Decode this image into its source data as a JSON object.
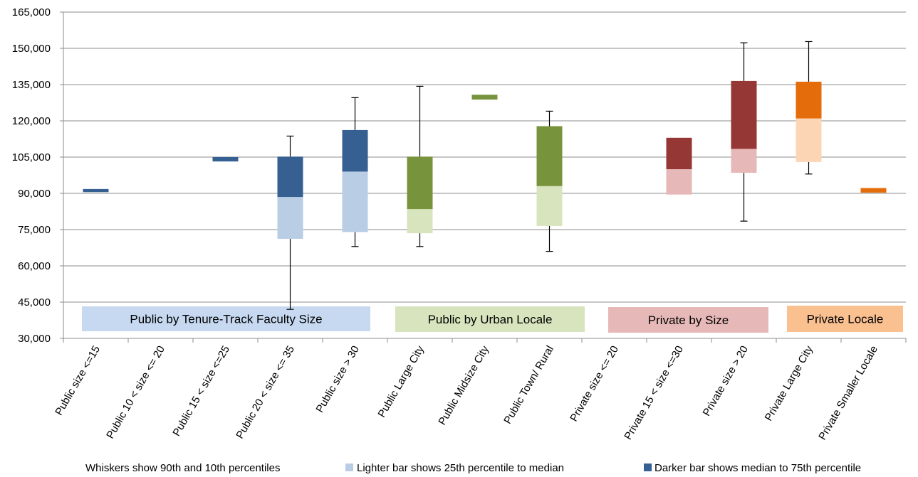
{
  "chart_data": {
    "type": "box",
    "title": "",
    "xlabel": "",
    "ylabel": "",
    "ylim": [
      30000,
      165000
    ],
    "yticks": [
      30000,
      45000,
      60000,
      75000,
      90000,
      105000,
      120000,
      135000,
      150000,
      165000
    ],
    "ytick_labels": [
      "30,000",
      "45,000",
      "60,000",
      "75,000",
      "90,000",
      "105,000",
      "120,000",
      "135,000",
      "150,000",
      "165,000"
    ],
    "grid": true,
    "categories": [
      "Public size <=15",
      "Public 10 < size <= 20",
      "Public 15 < size <=25",
      "Public 20 < size <= 35",
      "Public size > 30",
      "Public Large City",
      "Public Midsize City",
      "Public Town/ Rural",
      "Private size <= 20",
      "Private 15 < size <=30",
      "Private size > 20",
      "Private Large City",
      "Private Smaller Locale"
    ],
    "boxes": [
      {
        "p10": null,
        "q1": null,
        "median": 90500,
        "q3": 91800,
        "p90": null,
        "dark": "#376092",
        "light": "#b9cde5"
      },
      {
        "p10": null,
        "q1": null,
        "median": null,
        "q3": null,
        "p90": null,
        "dark": "#376092",
        "light": "#b9cde5"
      },
      {
        "p10": null,
        "q1": null,
        "median": 103200,
        "q3": 105000,
        "p90": null,
        "dark": "#376092",
        "light": "#b9cde5"
      },
      {
        "p10": 42000,
        "q1": 71200,
        "median": 88500,
        "q3": 105200,
        "p90": 113700,
        "dark": "#376092",
        "light": "#b9cde5"
      },
      {
        "p10": 68000,
        "q1": 74000,
        "median": 99000,
        "q3": 116200,
        "p90": 129600,
        "dark": "#376092",
        "light": "#b9cde5"
      },
      {
        "p10": 68000,
        "q1": 73500,
        "median": 83500,
        "q3": 105200,
        "p90": 134300,
        "dark": "#77933c",
        "light": "#d7e4bd"
      },
      {
        "p10": null,
        "q1": null,
        "median": 128800,
        "q3": 130800,
        "p90": null,
        "dark": "#77933c",
        "light": "#d7e4bd"
      },
      {
        "p10": 66000,
        "q1": 76500,
        "median": 93000,
        "q3": 117800,
        "p90": 124000,
        "dark": "#77933c",
        "light": "#d7e4bd"
      },
      {
        "p10": null,
        "q1": null,
        "median": null,
        "q3": null,
        "p90": null,
        "dark": "#953735",
        "light": "#e6b9b8"
      },
      {
        "p10": null,
        "q1": 89500,
        "median": 100000,
        "q3": 113000,
        "p90": null,
        "dark": "#953735",
        "light": "#e6b9b8"
      },
      {
        "p10": 78500,
        "q1": 98500,
        "median": 108400,
        "q3": 136500,
        "p90": 152300,
        "dark": "#953735",
        "light": "#e6b9b8"
      },
      {
        "p10": 98000,
        "q1": 103000,
        "median": 121000,
        "q3": 136200,
        "p90": 152800,
        "dark": "#e46c0a",
        "light": "#fcd5b5"
      },
      {
        "p10": null,
        "q1": null,
        "median": 90300,
        "q3": 92200,
        "p90": null,
        "dark": "#e46c0a",
        "light": "#fcd5b5"
      }
    ],
    "groups": [
      {
        "label": "Public by Tenure-Track Faculty Size",
        "color": "#c6d9f1",
        "start": 0,
        "end": 4
      },
      {
        "label": "Public by Urban Locale",
        "color": "#d7e4bd",
        "start": 5,
        "end": 7
      },
      {
        "label": "Private by Size",
        "color": "#e6b9b8",
        "start": 8,
        "end": 10
      },
      {
        "label": "Private Locale",
        "color": "#fac090",
        "start": 11,
        "end": 11
      }
    ],
    "notes": {
      "whiskers": "Whiskers show 90th and 10th percentiles",
      "lighter": "Lighter bar shows 25th percentile to median",
      "darker": "Darker bar shows median to 75th percentile"
    },
    "note_colors": {
      "lighter": "#b9cde5",
      "darker": "#376092"
    }
  }
}
